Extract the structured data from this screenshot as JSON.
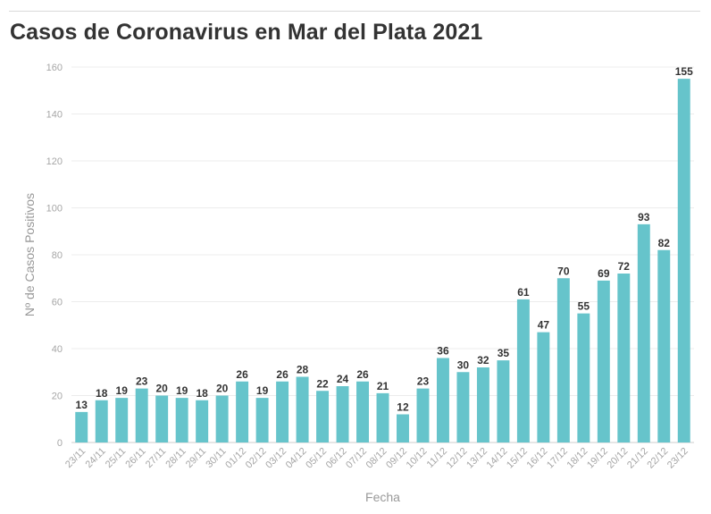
{
  "title": "Casos de Coronavirus en Mar del Plata 2021",
  "colors": {
    "bar": "#66c4cb",
    "grid": "#ececec",
    "axis": "#cccccc",
    "title": "#333333",
    "tick": "#a6a6a6",
    "label": "#333333"
  },
  "chart_data": {
    "type": "bar",
    "title": "Casos de Coronavirus en Mar del Plata 2021",
    "xlabel": "Fecha",
    "ylabel": "Nº de Casos Positivos",
    "ylim": [
      0,
      160
    ],
    "yticks": [
      0,
      20,
      40,
      60,
      80,
      100,
      120,
      140,
      160
    ],
    "grid": true,
    "categories": [
      "23/11",
      "24/11",
      "25/11",
      "26/11",
      "27/11",
      "28/11",
      "29/11",
      "30/11",
      "01/12",
      "02/12",
      "03/12",
      "04/12",
      "05/12",
      "06/12",
      "07/12",
      "08/12",
      "09/12",
      "10/12",
      "11/12",
      "12/12",
      "13/12",
      "14/12",
      "15/12",
      "16/12",
      "17/12",
      "18/12",
      "19/12",
      "20/12",
      "21/12",
      "22/12",
      "23/12"
    ],
    "values": [
      13,
      18,
      19,
      23,
      20,
      19,
      18,
      20,
      26,
      19,
      26,
      28,
      22,
      24,
      26,
      21,
      12,
      23,
      36,
      30,
      32,
      35,
      61,
      47,
      70,
      55,
      69,
      72,
      93,
      82,
      155
    ]
  }
}
